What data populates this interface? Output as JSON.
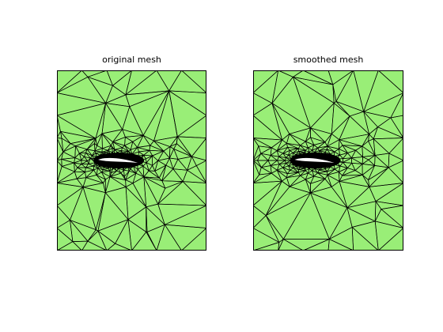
{
  "panels": [
    {
      "title": "original mesh",
      "fill_color": "#99ee77",
      "edge_color": "#000000",
      "hole_color": "#ffffff",
      "seed": 7
    },
    {
      "title": "smoothed mesh",
      "fill_color": "#99ee77",
      "edge_color": "#000000",
      "hole_color": "#ffffff",
      "seed": 19
    }
  ]
}
